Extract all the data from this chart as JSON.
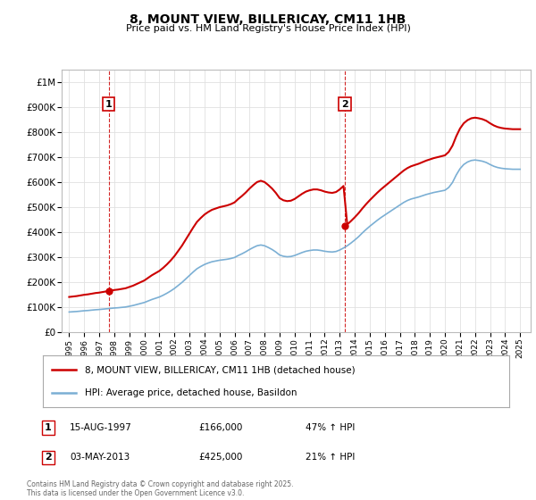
{
  "title": "8, MOUNT VIEW, BILLERICAY, CM11 1HB",
  "subtitle": "Price paid vs. HM Land Registry's House Price Index (HPI)",
  "legend_line1": "8, MOUNT VIEW, BILLERICAY, CM11 1HB (detached house)",
  "legend_line2": "HPI: Average price, detached house, Basildon",
  "footnote": "Contains HM Land Registry data © Crown copyright and database right 2025.\nThis data is licensed under the Open Government Licence v3.0.",
  "table_rows": [
    {
      "num": "1",
      "date": "15-AUG-1997",
      "price": "£166,000",
      "change": "47% ↑ HPI"
    },
    {
      "num": "2",
      "date": "03-MAY-2013",
      "price": "£425,000",
      "change": "21% ↑ HPI"
    }
  ],
  "sale1_year": 1997.62,
  "sale1_price": 166000,
  "sale2_year": 2013.34,
  "sale2_price": 425000,
  "red_color": "#cc0000",
  "blue_color": "#7bafd4",
  "vline_color": "#cc0000",
  "grid_color": "#e0e0e0",
  "bg_color": "#ffffff",
  "ylim_max": 1050000,
  "ylim_min": 0,
  "xlim_min": 1994.5,
  "xlim_max": 2025.7,
  "hpi_years": [
    1995,
    1995.25,
    1995.5,
    1995.75,
    1996,
    1996.25,
    1996.5,
    1996.75,
    1997,
    1997.25,
    1997.5,
    1997.75,
    1998,
    1998.25,
    1998.5,
    1998.75,
    1999,
    1999.25,
    1999.5,
    1999.75,
    2000,
    2000.25,
    2000.5,
    2000.75,
    2001,
    2001.25,
    2001.5,
    2001.75,
    2002,
    2002.25,
    2002.5,
    2002.75,
    2003,
    2003.25,
    2003.5,
    2003.75,
    2004,
    2004.25,
    2004.5,
    2004.75,
    2005,
    2005.25,
    2005.5,
    2005.75,
    2006,
    2006.25,
    2006.5,
    2006.75,
    2007,
    2007.25,
    2007.5,
    2007.75,
    2008,
    2008.25,
    2008.5,
    2008.75,
    2009,
    2009.25,
    2009.5,
    2009.75,
    2010,
    2010.25,
    2010.5,
    2010.75,
    2011,
    2011.25,
    2011.5,
    2011.75,
    2012,
    2012.25,
    2012.5,
    2012.75,
    2013,
    2013.25,
    2013.5,
    2013.75,
    2014,
    2014.25,
    2014.5,
    2014.75,
    2015,
    2015.25,
    2015.5,
    2015.75,
    2016,
    2016.25,
    2016.5,
    2016.75,
    2017,
    2017.25,
    2017.5,
    2017.75,
    2018,
    2018.25,
    2018.5,
    2018.75,
    2019,
    2019.25,
    2019.5,
    2019.75,
    2020,
    2020.25,
    2020.5,
    2020.75,
    2021,
    2021.25,
    2021.5,
    2021.75,
    2022,
    2022.25,
    2022.5,
    2022.75,
    2023,
    2023.25,
    2023.5,
    2023.75,
    2024,
    2024.25,
    2024.5,
    2024.75,
    2025
  ],
  "hpi_values": [
    82000,
    83000,
    84000,
    85500,
    87000,
    88000,
    89500,
    91000,
    92000,
    93500,
    95000,
    96500,
    98000,
    99000,
    100500,
    102000,
    105000,
    108000,
    112000,
    116000,
    120000,
    126000,
    132000,
    137000,
    142000,
    149000,
    157000,
    166000,
    176000,
    188000,
    200000,
    214000,
    228000,
    242000,
    255000,
    264000,
    272000,
    278000,
    283000,
    286000,
    289000,
    291000,
    293000,
    296000,
    300000,
    308000,
    315000,
    323000,
    332000,
    340000,
    347000,
    350000,
    347000,
    340000,
    332000,
    322000,
    310000,
    305000,
    303000,
    304000,
    308000,
    314000,
    320000,
    325000,
    328000,
    330000,
    330000,
    328000,
    325000,
    323000,
    322000,
    324000,
    330000,
    338000,
    347000,
    358000,
    370000,
    383000,
    398000,
    412000,
    425000,
    437000,
    449000,
    460000,
    470000,
    480000,
    490000,
    500000,
    510000,
    520000,
    528000,
    534000,
    538000,
    542000,
    547000,
    552000,
    556000,
    560000,
    563000,
    566000,
    569000,
    580000,
    600000,
    630000,
    655000,
    672000,
    682000,
    688000,
    690000,
    688000,
    685000,
    680000,
    672000,
    665000,
    660000,
    657000,
    655000,
    654000,
    653000,
    653000,
    653000
  ]
}
